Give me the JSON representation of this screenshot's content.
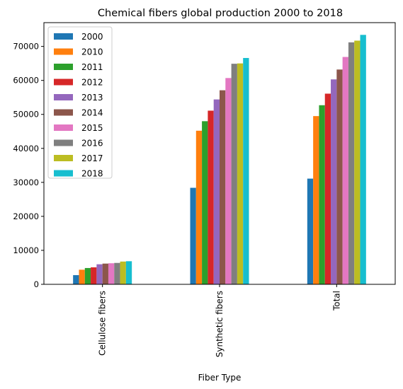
{
  "chart_data": {
    "type": "bar",
    "title": "Chemical fibers global production 2000 to 2018",
    "xlabel": "Fiber Type",
    "ylabel": "",
    "categories": [
      "Cellulose fibers",
      "Synthetic fibers",
      "Total"
    ],
    "ylim": [
      0,
      77000
    ],
    "yticks": [
      0,
      10000,
      20000,
      30000,
      40000,
      50000,
      60000,
      70000
    ],
    "grid": false,
    "legend_position": "top-left",
    "series": [
      {
        "name": "2000",
        "color": "#1f77b4",
        "values": [
          2700,
          28400,
          31100
        ]
      },
      {
        "name": "2010",
        "color": "#ff7f0e",
        "values": [
          4300,
          45200,
          49500
        ]
      },
      {
        "name": "2011",
        "color": "#2ca02c",
        "values": [
          4800,
          48000,
          52700
        ]
      },
      {
        "name": "2012",
        "color": "#d62728",
        "values": [
          5000,
          51100,
          56100
        ]
      },
      {
        "name": "2013",
        "color": "#9467bd",
        "values": [
          5900,
          54400,
          60300
        ]
      },
      {
        "name": "2014",
        "color": "#8c564b",
        "values": [
          6100,
          57100,
          63200
        ]
      },
      {
        "name": "2015",
        "color": "#e377c2",
        "values": [
          6200,
          60700,
          66900
        ]
      },
      {
        "name": "2016",
        "color": "#7f7f7f",
        "values": [
          6300,
          64900,
          71200
        ]
      },
      {
        "name": "2017",
        "color": "#bcbd22",
        "values": [
          6700,
          65000,
          71700
        ]
      },
      {
        "name": "2018",
        "color": "#17becf",
        "values": [
          6800,
          66600,
          73400
        ]
      }
    ]
  }
}
